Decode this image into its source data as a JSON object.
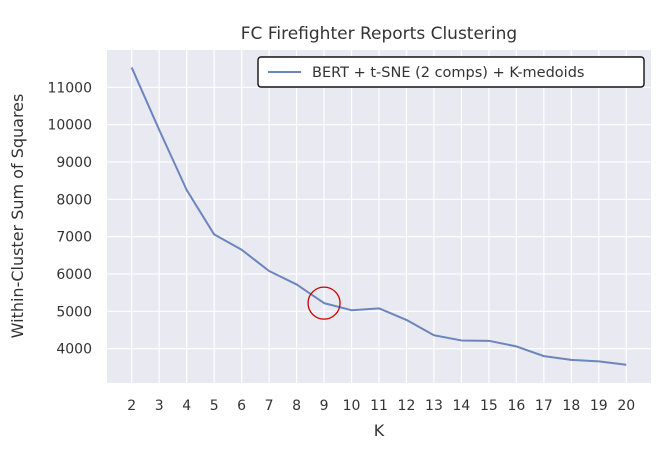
{
  "chart_data": {
    "type": "line",
    "title": "FC Firefighter Reports Clustering",
    "xlabel": "K",
    "ylabel": "Within-Cluster Sum of Squares",
    "x": [
      2,
      3,
      4,
      5,
      6,
      7,
      8,
      9,
      10,
      11,
      12,
      13,
      14,
      15,
      16,
      17,
      18,
      19,
      20
    ],
    "y_ticks": [
      4000,
      5000,
      6000,
      7000,
      8000,
      9000,
      10000,
      11000
    ],
    "ylim": [
      3080,
      12000
    ],
    "xlim": [
      1.1,
      20.9
    ],
    "grid": true,
    "legend_position": "top-right",
    "series": [
      {
        "name": "BERT + t-SNE (2 comps) + K-medoids",
        "color": "#6b85bd",
        "values": [
          11530,
          9860,
          8250,
          7060,
          6650,
          6080,
          5720,
          5220,
          5030,
          5080,
          4770,
          4360,
          4220,
          4210,
          4060,
          3800,
          3700,
          3660,
          3570
        ]
      }
    ],
    "annotations": [
      {
        "type": "circle",
        "x": 9,
        "y": 5220,
        "color": "#cc0000"
      }
    ],
    "background_color": "#e9e9f1",
    "grid_color": "#ffffff"
  }
}
